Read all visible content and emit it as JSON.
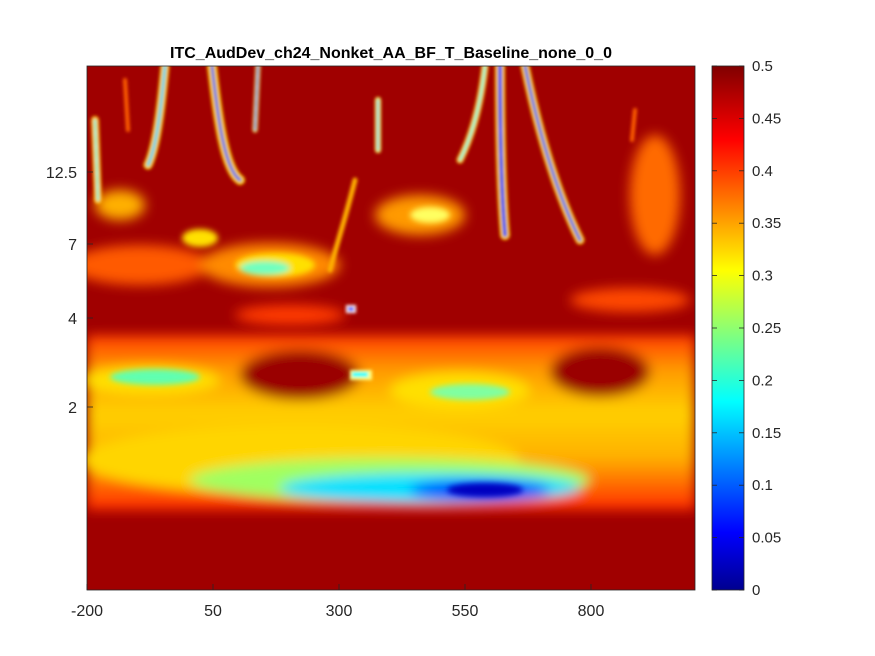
{
  "chart_data": {
    "type": "heatmap",
    "title": "ITC_AudDev_ch24_Nonket_AA_BF_T_Baseline_none_0_0",
    "xlabel": "",
    "ylabel": "",
    "x_ticks": [
      "-200",
      "50",
      "300",
      "550",
      "800"
    ],
    "y_ticks": [
      "12.5",
      "7",
      "4",
      "2"
    ],
    "colorbar": {
      "colormap": "jet",
      "range": [
        0,
        0.5
      ],
      "ticks": [
        "0",
        "0.05",
        "0.1",
        "0.15",
        "0.2",
        "0.25",
        "0.3",
        "0.35",
        "0.4",
        "0.45",
        "0.5"
      ]
    },
    "features": [
      {
        "label": "low-ITC trough (blue)",
        "time": 580,
        "freq_band": "lowest (~1 Hz)",
        "value": 0.08
      },
      {
        "label": "mid-ITC band (yellow)",
        "time_range": [
          -200,
          1000
        ],
        "freq_band": "~1.5-2.5 Hz",
        "value": 0.35
      },
      {
        "label": "vertical streaks",
        "times": [
          20,
          80,
          135,
          610,
          650
        ],
        "freq_band": "> 7 Hz",
        "value": 0.15
      }
    ]
  }
}
